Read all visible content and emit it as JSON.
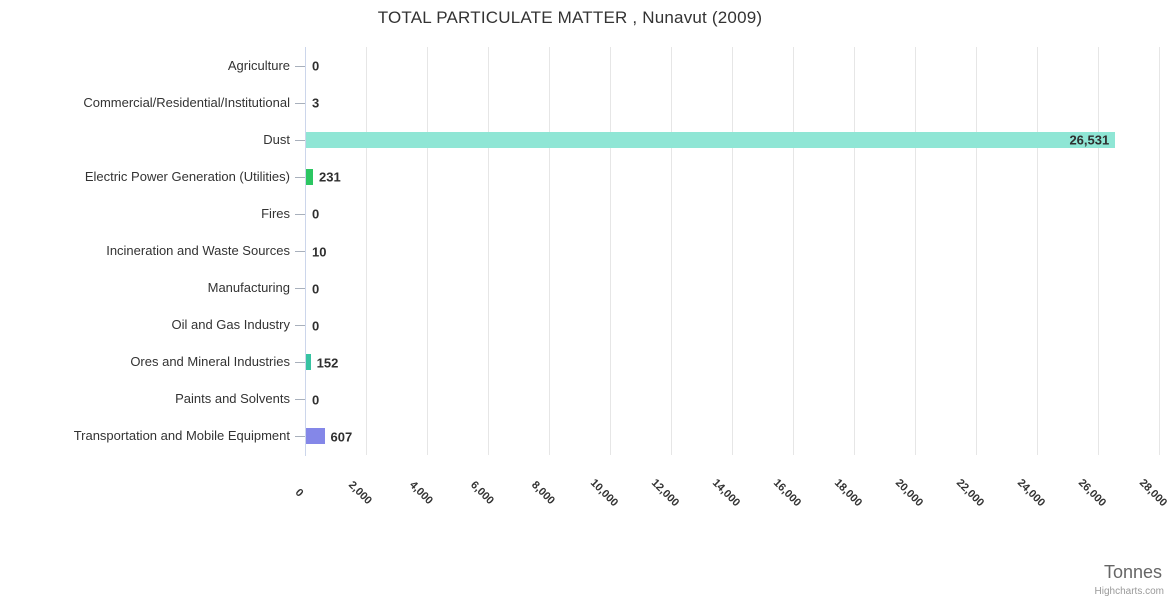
{
  "title": "TOTAL PARTICULATE MATTER , Nunavut (2009)",
  "credits": "Highcharts.com",
  "chart_data": {
    "type": "bar",
    "orientation": "horizontal",
    "title": "TOTAL PARTICULATE MATTER , Nunavut (2009)",
    "categories": [
      "Agriculture",
      "Commercial/Residential/Institutional",
      "Dust",
      "Electric Power Generation (Utilities)",
      "Fires",
      "Incineration and Waste Sources",
      "Manufacturing",
      "Oil and Gas Industry",
      "Ores and Mineral Industries",
      "Paints and Solvents",
      "Transportation and Mobile Equipment"
    ],
    "values": [
      0,
      3,
      26531,
      231,
      0,
      10,
      0,
      0,
      152,
      0,
      607
    ],
    "value_labels": [
      "0",
      "3",
      "26,531",
      "231",
      "0",
      "10",
      "0",
      "0",
      "152",
      "0",
      "607"
    ],
    "bar_colors": [
      "#8fe6d5",
      "#8fe6d5",
      "#8fe6d5",
      "#2cc662",
      "#8fe6d5",
      "#8fe6d5",
      "#8fe6d5",
      "#8fe6d5",
      "#37c3a2",
      "#8fe6d5",
      "#8487e8"
    ],
    "xlabel": "Tonnes",
    "x_axis": {
      "min": 0,
      "max": 28000,
      "tick_interval": 2000,
      "tick_labels": [
        "0",
        "2,000",
        "4,000",
        "6,000",
        "8,000",
        "10,000",
        "12,000",
        "14,000",
        "16,000",
        "18,000",
        "20,000",
        "22,000",
        "24,000",
        "26,000",
        "28,000"
      ]
    },
    "grid": true,
    "legend": false,
    "styles": {
      "grid_color": "#e6e6e6",
      "axis_line_color": "#ccd6eb",
      "tick_color": "#a8b0bc",
      "label_color": "#333333",
      "data_label_color": "#2f2f2f",
      "xlabel_color": "#666666",
      "credit_color": "#999999"
    }
  }
}
